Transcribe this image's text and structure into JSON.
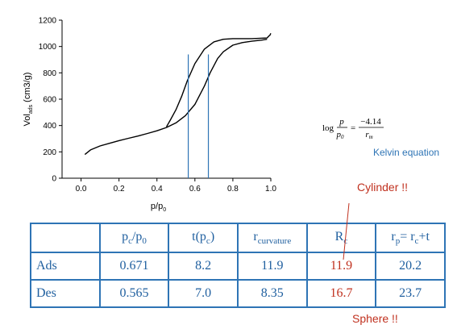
{
  "chart_data": {
    "type": "line",
    "xlabel_main": "p/p",
    "xlabel_sub": "0",
    "ylabel_main": "Vol",
    "ylabel_sub": "ads",
    "ylabel_unit": " (cm3/g)",
    "xlim": [
      -0.1,
      1.0
    ],
    "ylim": [
      0,
      1200
    ],
    "xticks": [
      "0.0",
      "0.2",
      "0.4",
      "0.6",
      "0.8",
      "1.0"
    ],
    "xtick_values": [
      0.0,
      0.2,
      0.4,
      0.6,
      0.8,
      1.0
    ],
    "yticks": [
      "0",
      "200",
      "400",
      "600",
      "800",
      "1000",
      "1200"
    ],
    "ytick_values": [
      0,
      200,
      400,
      600,
      800,
      1000,
      1200
    ],
    "series": [
      {
        "x": [
          0.02,
          0.05,
          0.1,
          0.15,
          0.2,
          0.25,
          0.3,
          0.35,
          0.4,
          0.45,
          0.5,
          0.55,
          0.6,
          0.65,
          0.68,
          0.72,
          0.75,
          0.8,
          0.85,
          0.9,
          0.95,
          0.98
        ],
        "y": [
          180,
          215,
          245,
          265,
          285,
          303,
          320,
          340,
          360,
          385,
          420,
          475,
          560,
          700,
          800,
          910,
          960,
          1010,
          1030,
          1040,
          1048,
          1055
        ],
        "color": "#000000"
      },
      {
        "x": [
          0.45,
          0.47,
          0.5,
          0.53,
          0.56,
          0.6,
          0.65,
          0.7,
          0.75,
          0.8,
          0.9,
          0.98,
          0.99,
          0.995,
          1.0
        ],
        "y": [
          390,
          440,
          520,
          620,
          740,
          870,
          980,
          1035,
          1055,
          1060,
          1060,
          1065,
          1080,
          1085,
          1100
        ],
        "color": "#000000"
      }
    ],
    "vlines": [
      {
        "x": 0.565,
        "y_top": 940,
        "color": "#2e74b5"
      },
      {
        "x": 0.671,
        "y_top": 940,
        "color": "#2e74b5"
      }
    ]
  },
  "formula": {
    "log": "log",
    "p": "p",
    "p0_main": "p",
    "p0_sub": "0",
    "equals": "=",
    "numerator": "−4.14",
    "r_main": "r",
    "r_sub": "m"
  },
  "kelvin_label": "Kelvin equation",
  "annotations": {
    "cylinder": "Cylinder !!",
    "sphere": "Sphere !!",
    "color": "#c0311f"
  },
  "table": {
    "border_color": "#2e74b5",
    "headers": [
      {
        "main": "",
        "sub": "",
        "tail": ""
      },
      {
        "main": "p",
        "sub": "c",
        "tail": "/p",
        "sub2": "0"
      },
      {
        "main": "t(p",
        "sub": "c",
        "tail": ")"
      },
      {
        "main": "r",
        "sub": "curvature",
        "tail": ""
      },
      {
        "main": "R",
        "sub": "c",
        "tail": ""
      },
      {
        "main": "r",
        "sub": "p",
        "tail": "= r",
        "sub2": "c",
        "tail2": "+t"
      }
    ],
    "rows": [
      {
        "label": "Ads",
        "cells": [
          "0.671",
          "8.2",
          "11.9",
          "11.9",
          "20.2"
        ]
      },
      {
        "label": "Des",
        "cells": [
          "0.565",
          "7.0",
          "8.35",
          "16.7",
          "23.7"
        ]
      }
    ]
  }
}
